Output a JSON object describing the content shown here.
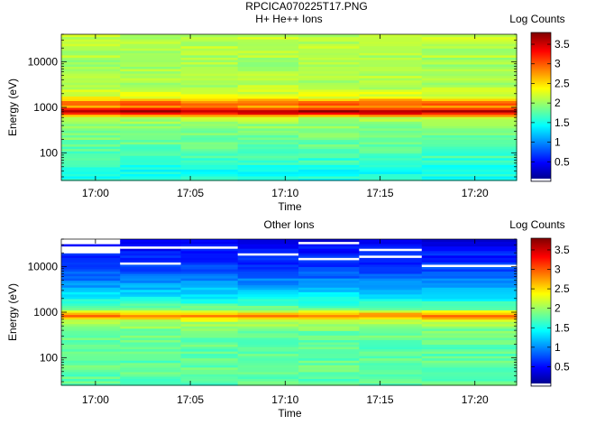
{
  "figure_title": "RPCICA070225T17.PNG",
  "colorscale": {
    "stops": [
      "#00007f",
      "#0000ff",
      "#0080ff",
      "#00ffff",
      "#80ff80",
      "#ffff00",
      "#ff8000",
      "#ff0000",
      "#7f0000"
    ],
    "missing_color": "#ffffff"
  },
  "chart_data": [
    {
      "type": "heatmap",
      "title": "H+ He++ Ions",
      "xlabel": "Time",
      "ylabel": "Energy (eV)",
      "colorbar_label": "Log Counts",
      "x_ticks": [
        "17:00",
        "17:05",
        "17:10",
        "17:15",
        "17:20"
      ],
      "x_tick_minutes": [
        0,
        5,
        10,
        15,
        20
      ],
      "xlim_minutes": [
        -1.8,
        22.2
      ],
      "y_scale": "log",
      "y_ticks": [
        100,
        1000,
        10000
      ],
      "y_tick_labels": [
        "100",
        "1000",
        "10000"
      ],
      "ylim": [
        25,
        40000
      ],
      "clim": [
        0,
        3.8
      ],
      "colorbar_ticks": [
        0.5,
        1,
        1.5,
        2,
        2.5,
        3,
        3.5
      ],
      "colorbar_tick_labels": [
        "0.5",
        "1",
        "1.5",
        "2",
        "2.5",
        "3",
        "3.5"
      ],
      "time_blocks_minutes": [
        -1.8,
        1.3,
        4.5,
        7.5,
        10.7,
        13.9,
        17.2,
        22.2
      ],
      "energy_profile": [
        {
          "e": 25,
          "v": 1.55
        },
        {
          "e": 40,
          "v": 1.45
        },
        {
          "e": 60,
          "v": 1.6
        },
        {
          "e": 100,
          "v": 1.7
        },
        {
          "e": 200,
          "v": 1.85
        },
        {
          "e": 400,
          "v": 1.95
        },
        {
          "e": 600,
          "v": 2.1
        },
        {
          "e": 750,
          "v": 3.3
        },
        {
          "e": 830,
          "v": 3.7
        },
        {
          "e": 920,
          "v": 3.3
        },
        {
          "e": 1050,
          "v": 2.75
        },
        {
          "e": 1200,
          "v": 3.0
        },
        {
          "e": 1400,
          "v": 2.8
        },
        {
          "e": 1700,
          "v": 2.3
        },
        {
          "e": 3000,
          "v": 2.1
        },
        {
          "e": 10000,
          "v": 2.05
        },
        {
          "e": 40000,
          "v": 2.15
        }
      ]
    },
    {
      "type": "heatmap",
      "title": "Other Ions",
      "xlabel": "Time",
      "ylabel": "Energy (eV)",
      "colorbar_label": "Log Counts",
      "x_ticks": [
        "17:00",
        "17:05",
        "17:10",
        "17:15",
        "17:20"
      ],
      "x_tick_minutes": [
        0,
        5,
        10,
        15,
        20
      ],
      "xlim_minutes": [
        -1.8,
        22.2
      ],
      "y_scale": "log",
      "y_ticks": [
        100,
        1000,
        10000
      ],
      "y_tick_labels": [
        "100",
        "1000",
        "10000"
      ],
      "ylim": [
        25,
        40000
      ],
      "clim": [
        0,
        3.8
      ],
      "colorbar_ticks": [
        0.5,
        1,
        1.5,
        2,
        2.5,
        3,
        3.5
      ],
      "colorbar_tick_labels": [
        "0.5",
        "1",
        "1.5",
        "2",
        "2.5",
        "3",
        "3.5"
      ],
      "time_blocks_minutes": [
        -1.8,
        1.3,
        4.5,
        7.5,
        10.7,
        13.9,
        17.2,
        22.2
      ],
      "energy_profile": [
        {
          "e": 25,
          "v": 1.75
        },
        {
          "e": 60,
          "v": 1.8
        },
        {
          "e": 150,
          "v": 1.75
        },
        {
          "e": 400,
          "v": 1.85
        },
        {
          "e": 650,
          "v": 2.1
        },
        {
          "e": 780,
          "v": 2.7
        },
        {
          "e": 860,
          "v": 2.95
        },
        {
          "e": 950,
          "v": 2.6
        },
        {
          "e": 1200,
          "v": 1.85
        },
        {
          "e": 2000,
          "v": 1.45
        },
        {
          "e": 4000,
          "v": 1.05
        },
        {
          "e": 8000,
          "v": 0.75
        },
        {
          "e": 20000,
          "v": 0.55
        },
        {
          "e": 40000,
          "v": 0.4
        }
      ]
    }
  ]
}
